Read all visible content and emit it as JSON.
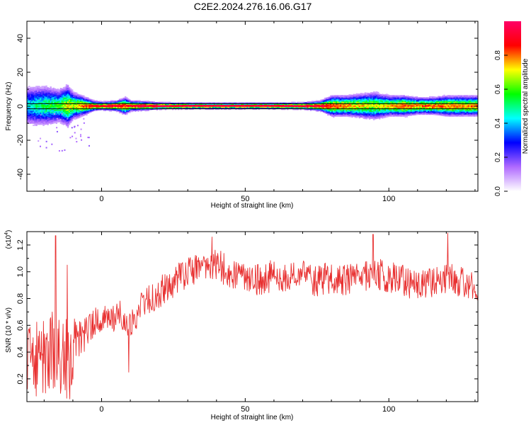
{
  "figure": {
    "title": "C2E2.2024.276.16.06.G17"
  },
  "chart_data": [
    {
      "type": "heatmap",
      "name": "spectrogram",
      "xlabel": "Height of straight line (km)",
      "ylabel": "Frequency (Hz)",
      "xlim": [
        -26,
        131
      ],
      "ylim": [
        -50,
        50
      ],
      "x_ticks": [
        0,
        50,
        100
      ],
      "y_ticks": [
        -40,
        -20,
        0,
        20,
        40
      ],
      "x_tick_labels": [
        "0",
        "50",
        "100"
      ],
      "y_tick_labels": [
        "-40",
        "-20",
        "0",
        "20",
        "40"
      ],
      "reference_lines": [
        -1.5,
        1.5
      ],
      "colorbar": {
        "label": "Normalized spectral amplitude",
        "range": [
          0,
          1
        ],
        "ticks": [
          0,
          0.2,
          0.4,
          0.6,
          0.8
        ],
        "tick_labels": [
          "0.0",
          "0.2",
          "0.4",
          "0.6",
          "0.8"
        ],
        "colormap": [
          "#ffffff",
          "#b06aff",
          "#0000ff",
          "#00ffff",
          "#00ff00",
          "#ffff00",
          "#ff0000",
          "#ff0066"
        ]
      },
      "profile": {
        "km": [
          -26,
          -20,
          -15,
          -12,
          -10,
          -7,
          -3,
          0,
          5,
          8,
          10,
          15,
          20,
          30,
          40,
          50,
          60,
          70,
          76,
          80,
          85,
          90,
          95,
          100,
          105,
          110,
          115,
          120,
          125,
          131
        ],
        "spread_hz": [
          6,
          6,
          5,
          6,
          4,
          3,
          1.5,
          1.2,
          1.5,
          2.5,
          1.5,
          1.3,
          1,
          0.9,
          0.9,
          0.9,
          0.9,
          1,
          1.5,
          3,
          3,
          3.5,
          4,
          3,
          3,
          2.5,
          2.5,
          3,
          3,
          3
        ],
        "peak_amplitude": [
          0.45,
          0.55,
          0.6,
          0.75,
          0.7,
          0.8,
          0.9,
          0.95,
          0.95,
          0.85,
          0.95,
          0.95,
          0.97,
          0.98,
          0.98,
          0.98,
          0.98,
          0.98,
          0.95,
          0.85,
          0.8,
          0.75,
          0.7,
          0.75,
          0.85,
          0.8,
          0.85,
          0.8,
          0.8,
          0.8
        ]
      }
    },
    {
      "type": "line",
      "name": "snr",
      "xlabel": "Height of straight line (km)",
      "ylabel": "SNR (10 * v/v)",
      "y_multiplier": "(x10",
      "y_multiplier_exp": "4",
      "y_multiplier_close": ")",
      "xlim": [
        -26,
        131
      ],
      "ylim": [
        0.03,
        1.3
      ],
      "x_ticks": [
        0,
        50,
        100
      ],
      "y_ticks": [
        0.2,
        0.4,
        0.6,
        0.8,
        1.0,
        1.2
      ],
      "x_tick_labels": [
        "0",
        "50",
        "100"
      ],
      "y_tick_labels": [
        "0.2",
        "0.4",
        "0.6",
        "0.8",
        "1.0",
        "1.2"
      ],
      "line_color": "#e83030",
      "trend": {
        "x": [
          -26,
          -20,
          -16,
          -12,
          -10,
          -5,
          0,
          3,
          6,
          10,
          15,
          20,
          25,
          30,
          35,
          40,
          45,
          50,
          55,
          60,
          65,
          70,
          75,
          80,
          85,
          90,
          95,
          100,
          105,
          110,
          115,
          120,
          125,
          131
        ],
        "y": [
          0.32,
          0.36,
          0.4,
          0.38,
          0.42,
          0.56,
          0.66,
          0.62,
          0.7,
          0.6,
          0.78,
          0.84,
          0.92,
          1.0,
          1.02,
          1.06,
          0.98,
          0.98,
          0.93,
          0.98,
          0.95,
          0.98,
          0.93,
          0.96,
          0.93,
          0.96,
          0.99,
          0.96,
          0.93,
          0.9,
          0.93,
          0.96,
          0.92,
          0.88
        ]
      },
      "noise_amplitude": {
        "x": [
          -26,
          -12,
          -8,
          0,
          10,
          20,
          131
        ],
        "y": [
          0.3,
          0.33,
          0.15,
          0.1,
          0.1,
          0.12,
          0.12
        ]
      },
      "spikes": [
        {
          "x": -16,
          "y": 1.27
        },
        {
          "x": -12,
          "y": 1.05
        },
        {
          "x": 38.5,
          "y": 1.26
        },
        {
          "x": 94.5,
          "y": 1.28
        },
        {
          "x": 120.5,
          "y": 1.29
        },
        {
          "x": 9.5,
          "y": 0.25
        },
        {
          "x": -11,
          "y": 0.05
        }
      ]
    }
  ]
}
